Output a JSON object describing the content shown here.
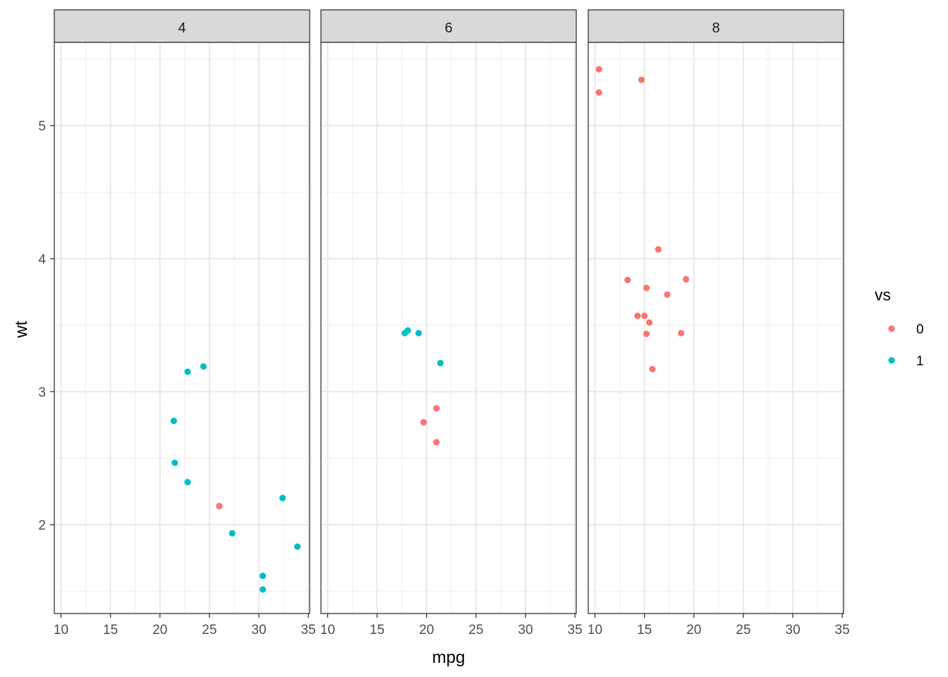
{
  "chart_data": {
    "type": "scatter",
    "facet_by": "cyl",
    "xlabel": "mpg",
    "ylabel": "wt",
    "xlim": [
      9.2,
      35.1
    ],
    "ylim": [
      1.33,
      5.63
    ],
    "x_ticks": [
      10,
      15,
      20,
      25,
      30,
      35
    ],
    "y_ticks": [
      2,
      3,
      4,
      5
    ],
    "grid": true,
    "legend": {
      "title": "vs",
      "position": "right",
      "entries": [
        {
          "label": "0",
          "color": "#F8766D"
        },
        {
          "label": "1",
          "color": "#00BFC4"
        }
      ]
    },
    "panels": [
      {
        "label": "4",
        "points": [
          {
            "x": 22.8,
            "y": 2.32,
            "vs": "1"
          },
          {
            "x": 24.4,
            "y": 3.19,
            "vs": "1"
          },
          {
            "x": 22.8,
            "y": 3.15,
            "vs": "1"
          },
          {
            "x": 32.4,
            "y": 2.2,
            "vs": "1"
          },
          {
            "x": 30.4,
            "y": 1.615,
            "vs": "1"
          },
          {
            "x": 33.9,
            "y": 1.835,
            "vs": "1"
          },
          {
            "x": 21.5,
            "y": 2.465,
            "vs": "1"
          },
          {
            "x": 27.3,
            "y": 1.935,
            "vs": "1"
          },
          {
            "x": 26.0,
            "y": 2.14,
            "vs": "0"
          },
          {
            "x": 30.4,
            "y": 1.513,
            "vs": "1"
          },
          {
            "x": 21.4,
            "y": 2.78,
            "vs": "1"
          }
        ]
      },
      {
        "label": "6",
        "points": [
          {
            "x": 21.0,
            "y": 2.62,
            "vs": "0"
          },
          {
            "x": 21.0,
            "y": 2.875,
            "vs": "0"
          },
          {
            "x": 21.4,
            "y": 3.215,
            "vs": "1"
          },
          {
            "x": 18.1,
            "y": 3.46,
            "vs": "1"
          },
          {
            "x": 19.2,
            "y": 3.44,
            "vs": "1"
          },
          {
            "x": 17.8,
            "y": 3.44,
            "vs": "1"
          },
          {
            "x": 19.7,
            "y": 2.77,
            "vs": "0"
          }
        ]
      },
      {
        "label": "8",
        "points": [
          {
            "x": 18.7,
            "y": 3.44,
            "vs": "0"
          },
          {
            "x": 14.3,
            "y": 3.57,
            "vs": "0"
          },
          {
            "x": 16.4,
            "y": 4.07,
            "vs": "0"
          },
          {
            "x": 17.3,
            "y": 3.73,
            "vs": "0"
          },
          {
            "x": 15.2,
            "y": 3.78,
            "vs": "0"
          },
          {
            "x": 10.4,
            "y": 5.25,
            "vs": "0"
          },
          {
            "x": 10.4,
            "y": 5.424,
            "vs": "0"
          },
          {
            "x": 14.7,
            "y": 5.345,
            "vs": "0"
          },
          {
            "x": 15.5,
            "y": 3.52,
            "vs": "0"
          },
          {
            "x": 15.2,
            "y": 3.435,
            "vs": "0"
          },
          {
            "x": 13.3,
            "y": 3.84,
            "vs": "0"
          },
          {
            "x": 19.2,
            "y": 3.845,
            "vs": "0"
          },
          {
            "x": 15.8,
            "y": 3.17,
            "vs": "0"
          },
          {
            "x": 15.0,
            "y": 3.57,
            "vs": "0"
          }
        ]
      }
    ]
  }
}
